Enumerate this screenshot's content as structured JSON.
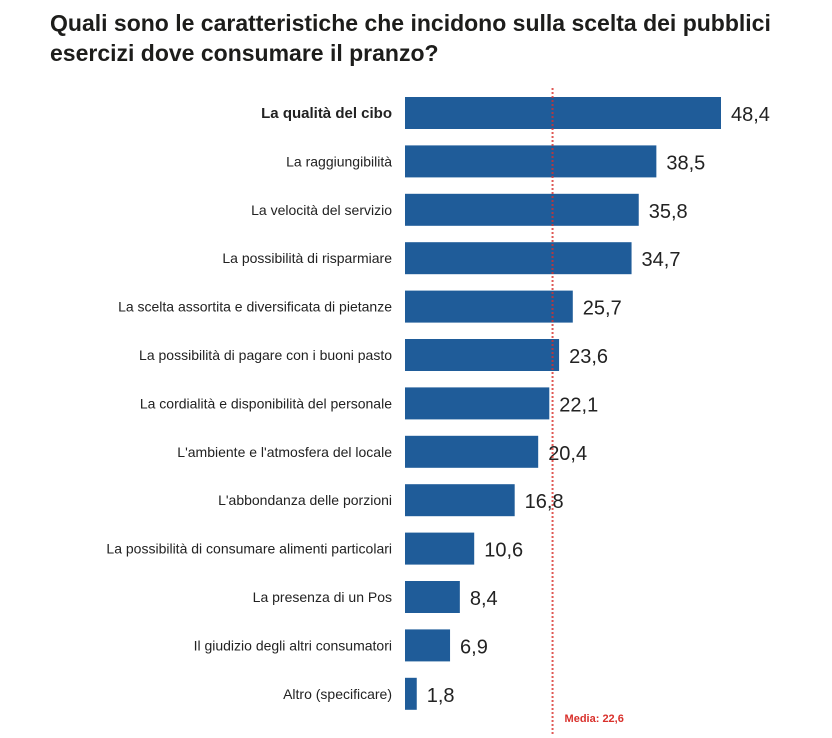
{
  "chart_data": {
    "type": "bar",
    "orientation": "horizontal",
    "title": "Quali sono le caratteristiche che incidono sulla scelta dei pubblici esercizi dove consumare il pranzo?",
    "categories": [
      "La qualità del cibo",
      "La raggiungibilità",
      "La velocità del servizio",
      "La possibilità di risparmiare",
      "La scelta assortita e diversificata di pietanze",
      "La possibilità di pagare con i buoni pasto",
      "La cordialità e disponibilità del personale",
      "L'ambiente e l'atmosfera del locale",
      "L'abbondanza delle porzioni",
      "La possibilità di consumare alimenti particolari",
      "La presenza di un Pos",
      "Il giudizio degli altri consumatori",
      "Altro (specificare)"
    ],
    "values": [
      48.4,
      38.5,
      35.8,
      34.7,
      25.7,
      23.6,
      22.1,
      20.4,
      16.8,
      10.6,
      8.4,
      6.9,
      1.8
    ],
    "value_labels": [
      "48,4",
      "38,5",
      "35,8",
      "34,7",
      "25,7",
      "23,6",
      "22,1",
      "20,4",
      "16,8",
      "10,6",
      "8,4",
      "6,9",
      "1,8"
    ],
    "reference_line": {
      "value": 22.6,
      "label": "Media: 22,6"
    },
    "bar_color": "#1f5c99",
    "reference_color": "#d9302b",
    "xlim": [
      0,
      50
    ],
    "grid": false,
    "legend": "none"
  }
}
